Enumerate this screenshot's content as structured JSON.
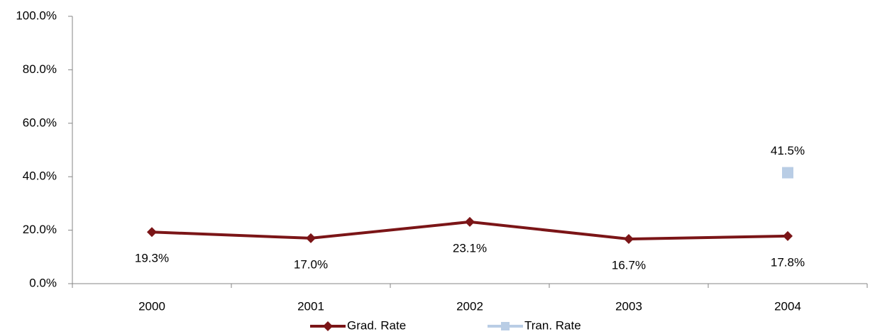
{
  "chart_data": {
    "type": "line",
    "categories": [
      "2000",
      "2001",
      "2002",
      "2003",
      "2004"
    ],
    "series": [
      {
        "name": "Grad. Rate",
        "color": "#7b1517",
        "marker": "diamond",
        "values": [
          19.3,
          17.0,
          23.1,
          16.7,
          17.8
        ],
        "value_labels": [
          "19.3%",
          "17.0%",
          "23.1%",
          "16.7%",
          "17.8%"
        ],
        "label_position": "below"
      },
      {
        "name": "Tran. Rate",
        "color": "#b9cde5",
        "marker": "square",
        "values": [
          null,
          null,
          null,
          null,
          41.5
        ],
        "value_labels": [
          null,
          null,
          null,
          null,
          "41.5%"
        ],
        "label_position": "above"
      }
    ],
    "ylim": [
      0,
      100
    ],
    "yticks": [
      {
        "value": 0,
        "label": "0.0%"
      },
      {
        "value": 20,
        "label": "20.0%"
      },
      {
        "value": 40,
        "label": "40.0%"
      },
      {
        "value": 60,
        "label": "60.0%"
      },
      {
        "value": 80,
        "label": "80.0%"
      },
      {
        "value": 100,
        "label": "100.0%"
      }
    ],
    "grid": false,
    "legend": "bottom"
  }
}
